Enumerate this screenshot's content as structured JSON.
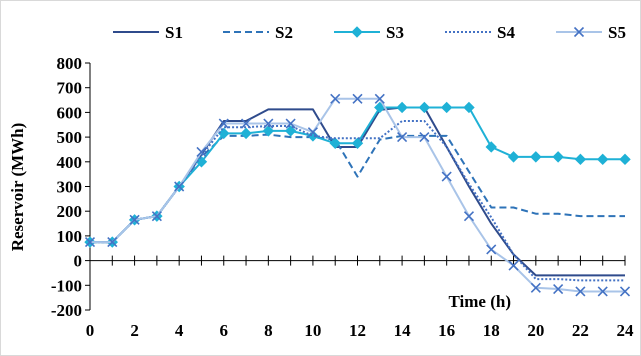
{
  "chart_data": {
    "type": "line",
    "title": "",
    "xlabel": "Time (h)",
    "ylabel": "Reservoir (MWh)",
    "xlim": [
      0,
      24
    ],
    "ylim": [
      -200,
      800
    ],
    "x_ticks": [
      0,
      2,
      4,
      6,
      8,
      10,
      12,
      14,
      16,
      18,
      20,
      22,
      24
    ],
    "y_ticks": [
      -200,
      -100,
      0,
      100,
      200,
      300,
      400,
      500,
      600,
      700,
      800
    ],
    "grid": false,
    "legend_position": "top",
    "series": [
      {
        "name": "S1",
        "color": "#2f4b8c",
        "dash": "solid",
        "marker": "none",
        "x": [
          0,
          1,
          2,
          3,
          4,
          5,
          6,
          7,
          8,
          9,
          10,
          11,
          12,
          13,
          14,
          15,
          16,
          17,
          18,
          19,
          20,
          21,
          22,
          23,
          24
        ],
        "values": [
          75,
          75,
          165,
          180,
          300,
          430,
          565,
          565,
          612,
          612,
          612,
          460,
          460,
          610,
          620,
          620,
          460,
          300,
          150,
          25,
          -60,
          -60,
          -60,
          -60,
          -60
        ]
      },
      {
        "name": "S2",
        "color": "#2e73b8",
        "dash": "dashed",
        "marker": "none",
        "x": [
          0,
          1,
          2,
          3,
          4,
          5,
          6,
          7,
          8,
          9,
          10,
          11,
          12,
          13,
          14,
          15,
          16,
          17,
          18,
          19,
          20,
          21,
          22,
          23,
          24
        ],
        "values": [
          75,
          75,
          165,
          180,
          300,
          420,
          505,
          505,
          510,
          500,
          500,
          490,
          340,
          490,
          505,
          505,
          505,
          360,
          215,
          215,
          190,
          190,
          180,
          180,
          180
        ]
      },
      {
        "name": "S3",
        "color": "#1fb1d6",
        "dash": "solid",
        "marker": "diamond",
        "x": [
          0,
          1,
          2,
          3,
          4,
          5,
          6,
          7,
          8,
          9,
          10,
          11,
          12,
          13,
          14,
          15,
          16,
          17,
          18,
          19,
          20,
          21,
          22,
          23,
          24
        ],
        "values": [
          75,
          75,
          165,
          180,
          300,
          400,
          515,
          515,
          525,
          525,
          505,
          475,
          475,
          620,
          620,
          620,
          620,
          620,
          460,
          420,
          420,
          420,
          410,
          410,
          410
        ]
      },
      {
        "name": "S4",
        "color": "#4472c4",
        "dash": "dotted",
        "marker": "none",
        "x": [
          0,
          1,
          2,
          3,
          4,
          5,
          6,
          7,
          8,
          9,
          10,
          11,
          12,
          13,
          14,
          15,
          16,
          17,
          18,
          19,
          20,
          21,
          22,
          23,
          24
        ],
        "values": [
          75,
          75,
          165,
          180,
          300,
          425,
          540,
          540,
          545,
          545,
          505,
          495,
          495,
          495,
          565,
          565,
          460,
          310,
          175,
          25,
          -75,
          -75,
          -80,
          -80,
          -80
        ]
      },
      {
        "name": "S5",
        "color": "#a9c4e8",
        "dash": "solid",
        "marker": "x",
        "marker_color": "#4472c4",
        "x": [
          0,
          1,
          2,
          3,
          4,
          5,
          6,
          7,
          8,
          9,
          10,
          11,
          12,
          13,
          14,
          15,
          16,
          17,
          18,
          19,
          20,
          21,
          22,
          23,
          24
        ],
        "values": [
          75,
          75,
          165,
          180,
          300,
          440,
          555,
          555,
          555,
          555,
          520,
          655,
          655,
          655,
          500,
          500,
          340,
          180,
          45,
          -20,
          -110,
          -115,
          -125,
          -125,
          -125
        ]
      }
    ]
  }
}
